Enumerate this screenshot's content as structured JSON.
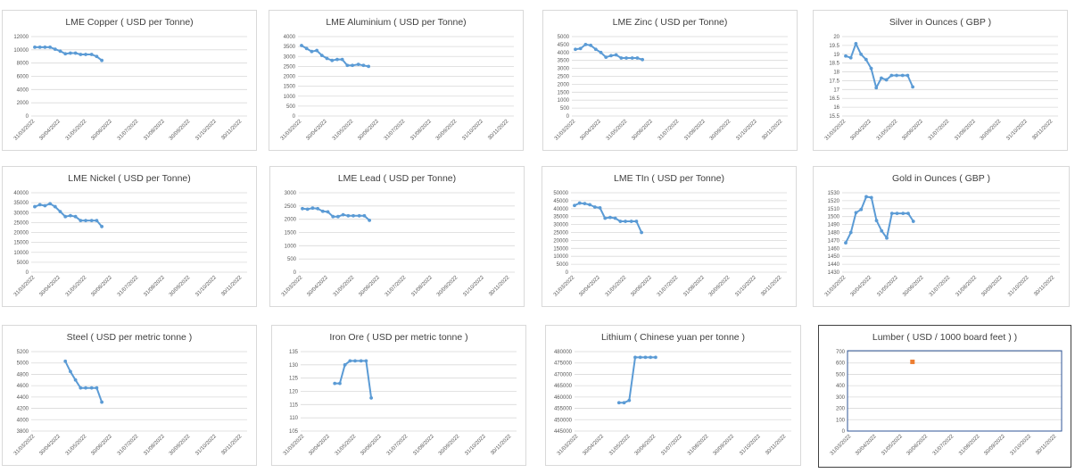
{
  "x_categories": [
    "31/03/2022",
    "30/04/2022",
    "31/05/2022",
    "30/06/2022",
    "31/07/2022",
    "31/08/2022",
    "30/09/2022",
    "31/10/2022",
    "30/11/2022"
  ],
  "colors": {
    "line": "#5b9bd5",
    "marker_orange": "#ed7d31",
    "grid": "#d9d9d9",
    "axis_text": "#595959",
    "title": "#404040"
  },
  "chart_data": [
    {
      "type": "line",
      "title": "LME Copper ( USD per Tonne)",
      "x_categories": [
        "31/03/2022",
        "30/04/2022",
        "31/05/2022",
        "30/06/2022",
        "31/07/2022",
        "31/08/2022",
        "30/09/2022",
        "31/10/2022",
        "30/11/2022"
      ],
      "y_ticks": [
        "12000",
        "10000",
        "8000",
        "6000",
        "4000",
        "2000",
        "0"
      ],
      "ylim": [
        0,
        12000
      ],
      "grid": true,
      "x": [
        "31/03/2022",
        "06/04/2022",
        "12/04/2022",
        "18/04/2022",
        "24/04/2022",
        "30/04/2022",
        "06/05/2022",
        "12/05/2022",
        "18/05/2022",
        "24/05/2022",
        "30/05/2022",
        "06/06/2022",
        "12/06/2022",
        "18/06/2022"
      ],
      "values": [
        10400,
        10400,
        10400,
        10400,
        10100,
        9800,
        9400,
        9500,
        9500,
        9300,
        9300,
        9300,
        9000,
        8400
      ]
    },
    {
      "type": "line",
      "title": "LME Aluminium ( USD per Tonne)",
      "x_categories": [
        "31/03/2022",
        "30/04/2022",
        "31/05/2022",
        "30/06/2022",
        "31/07/2022",
        "31/08/2022",
        "30/09/2022",
        "31/10/2022",
        "30/11/2022"
      ],
      "y_ticks": [
        "4000",
        "3500",
        "3000",
        "2500",
        "2000",
        "1500",
        "1000",
        "500",
        "0"
      ],
      "ylim": [
        0,
        4000
      ],
      "grid": true,
      "x": [
        "31/03/2022",
        "06/04/2022",
        "12/04/2022",
        "18/04/2022",
        "24/04/2022",
        "30/04/2022",
        "06/05/2022",
        "12/05/2022",
        "18/05/2022",
        "24/05/2022",
        "30/05/2022",
        "06/06/2022",
        "12/06/2022",
        "18/06/2022"
      ],
      "values": [
        3550,
        3400,
        3250,
        3300,
        3050,
        2900,
        2800,
        2850,
        2850,
        2550,
        2550,
        2600,
        2550,
        2500
      ]
    },
    {
      "type": "line",
      "title": "LME Zinc ( USD per Tonne)",
      "x_categories": [
        "31/03/2022",
        "30/04/2022",
        "31/05/2022",
        "30/06/2022",
        "31/07/2022",
        "31/08/2022",
        "30/09/2022",
        "31/10/2022",
        "30/11/2022"
      ],
      "y_ticks": [
        "5000",
        "4500",
        "4000",
        "3500",
        "3000",
        "2500",
        "2000",
        "1500",
        "1000",
        "500",
        "0"
      ],
      "ylim": [
        0,
        5000
      ],
      "grid": true,
      "x": [
        "31/03/2022",
        "06/04/2022",
        "12/04/2022",
        "18/04/2022",
        "24/04/2022",
        "30/04/2022",
        "06/05/2022",
        "12/05/2022",
        "18/05/2022",
        "24/05/2022",
        "30/05/2022",
        "06/06/2022",
        "12/06/2022",
        "18/06/2022"
      ],
      "values": [
        4200,
        4250,
        4500,
        4450,
        4200,
        4000,
        3700,
        3800,
        3850,
        3650,
        3650,
        3650,
        3650,
        3550
      ]
    },
    {
      "type": "line",
      "title": "Silver in Ounces ( GBP )",
      "x_categories": [
        "31/03/2022",
        "30/04/2022",
        "31/05/2022",
        "30/06/2022",
        "31/07/2022",
        "31/08/2022",
        "30/09/2022",
        "31/10/2022",
        "30/11/2022"
      ],
      "y_ticks": [
        "20",
        "19.5",
        "19",
        "18.5",
        "18",
        "17.5",
        "17",
        "16.5",
        "16",
        "15.5"
      ],
      "ylim": [
        15.5,
        20
      ],
      "grid": true,
      "x": [
        "31/03/2022",
        "06/04/2022",
        "12/04/2022",
        "18/04/2022",
        "24/04/2022",
        "30/04/2022",
        "06/05/2022",
        "12/05/2022",
        "18/05/2022",
        "24/05/2022",
        "30/05/2022",
        "06/06/2022",
        "12/06/2022",
        "18/06/2022"
      ],
      "values": [
        18.9,
        18.8,
        19.6,
        19.0,
        18.7,
        18.2,
        17.1,
        17.65,
        17.55,
        17.8,
        17.8,
        17.8,
        17.8,
        17.15
      ]
    },
    {
      "type": "line",
      "title": "LME Nickel ( USD per Tonne)",
      "x_categories": [
        "31/03/2022",
        "30/04/2022",
        "31/05/2022",
        "30/06/2022",
        "31/07/2022",
        "31/08/2022",
        "30/09/2022",
        "31/10/2022",
        "30/11/2022"
      ],
      "y_ticks": [
        "40000",
        "35000",
        "30000",
        "25000",
        "20000",
        "15000",
        "10000",
        "5000",
        "0"
      ],
      "ylim": [
        0,
        40000
      ],
      "grid": true,
      "x": [
        "31/03/2022",
        "06/04/2022",
        "12/04/2022",
        "18/04/2022",
        "24/04/2022",
        "30/04/2022",
        "06/05/2022",
        "12/05/2022",
        "18/05/2022",
        "24/05/2022",
        "30/05/2022",
        "06/06/2022",
        "12/06/2022",
        "18/06/2022"
      ],
      "values": [
        33000,
        34000,
        33500,
        34500,
        33000,
        30500,
        28000,
        28500,
        28000,
        26000,
        26000,
        26000,
        26000,
        23000
      ]
    },
    {
      "type": "line",
      "title": "LME Lead ( USD per Tonne)",
      "x_categories": [
        "31/03/2022",
        "30/04/2022",
        "31/05/2022",
        "30/06/2022",
        "31/07/2022",
        "31/08/2022",
        "30/09/2022",
        "31/10/2022",
        "30/11/2022"
      ],
      "y_ticks": [
        "3000",
        "2500",
        "2000",
        "1500",
        "1000",
        "500",
        "0"
      ],
      "ylim": [
        0,
        3000
      ],
      "grid": true,
      "x": [
        "31/03/2022",
        "06/04/2022",
        "12/04/2022",
        "18/04/2022",
        "24/04/2022",
        "30/04/2022",
        "06/05/2022",
        "12/05/2022",
        "18/05/2022",
        "24/05/2022",
        "30/05/2022",
        "06/06/2022",
        "12/06/2022",
        "18/06/2022"
      ],
      "values": [
        2400,
        2380,
        2420,
        2400,
        2300,
        2280,
        2100,
        2100,
        2170,
        2130,
        2130,
        2130,
        2130,
        1960
      ]
    },
    {
      "type": "line",
      "title": "LME TIn ( USD per Tonne)",
      "x_categories": [
        "31/03/2022",
        "30/04/2022",
        "31/05/2022",
        "30/06/2022",
        "31/07/2022",
        "31/08/2022",
        "30/09/2022",
        "31/10/2022",
        "30/11/2022"
      ],
      "y_ticks": [
        "50000",
        "45000",
        "40000",
        "35000",
        "30000",
        "25000",
        "20000",
        "15000",
        "10000",
        "5000",
        "0"
      ],
      "ylim": [
        0,
        50000
      ],
      "grid": true,
      "x": [
        "31/03/2022",
        "06/04/2022",
        "12/04/2022",
        "18/04/2022",
        "24/04/2022",
        "30/04/2022",
        "06/05/2022",
        "12/05/2022",
        "18/05/2022",
        "24/05/2022",
        "30/05/2022",
        "06/06/2022",
        "12/06/2022",
        "18/06/2022"
      ],
      "values": [
        42000,
        43500,
        43200,
        42500,
        41000,
        40500,
        34000,
        34500,
        34000,
        32000,
        32000,
        32000,
        32000,
        25000
      ]
    },
    {
      "type": "line",
      "title": "Gold in Ounces ( GBP )",
      "x_categories": [
        "31/03/2022",
        "30/04/2022",
        "31/05/2022",
        "30/06/2022",
        "31/07/2022",
        "31/08/2022",
        "30/09/2022",
        "31/10/2022",
        "30/11/2022"
      ],
      "y_ticks": [
        "1530",
        "1520",
        "1510",
        "1500",
        "1490",
        "1480",
        "1470",
        "1460",
        "1450",
        "1440",
        "1430"
      ],
      "ylim": [
        1430,
        1530
      ],
      "grid": true,
      "x": [
        "31/03/2022",
        "06/04/2022",
        "12/04/2022",
        "18/04/2022",
        "24/04/2022",
        "30/04/2022",
        "06/05/2022",
        "12/05/2022",
        "18/05/2022",
        "24/05/2022",
        "30/05/2022",
        "06/06/2022",
        "12/06/2022",
        "18/06/2022"
      ],
      "values": [
        1467,
        1480,
        1505,
        1509,
        1525,
        1524,
        1495,
        1482,
        1473,
        1504,
        1504,
        1504,
        1504,
        1494
      ]
    },
    {
      "type": "line",
      "title": "Steel ( USD per metric tonne )",
      "x_categories": [
        "31/03/2022",
        "30/04/2022",
        "31/05/2022",
        "30/06/2022",
        "31/07/2022",
        "31/08/2022",
        "30/09/2022",
        "31/10/2022",
        "30/11/2022"
      ],
      "y_ticks": [
        "5200",
        "5000",
        "4800",
        "4600",
        "4400",
        "4200",
        "4000",
        "3800"
      ],
      "ylim": [
        3800,
        5200
      ],
      "grid": true,
      "x": [
        "06/05/2022",
        "12/05/2022",
        "18/05/2022",
        "24/05/2022",
        "30/05/2022",
        "06/06/2022",
        "12/06/2022",
        "18/06/2022"
      ],
      "values": [
        5030,
        4850,
        4700,
        4560,
        4560,
        4560,
        4560,
        4310
      ]
    },
    {
      "type": "line",
      "title": "Iron Ore ( USD per metric tonne )",
      "x_categories": [
        "31/03/2022",
        "30/04/2022",
        "31/05/2022",
        "30/06/2022",
        "31/07/2022",
        "31/08/2022",
        "30/09/2022",
        "31/10/2022",
        "30/11/2022"
      ],
      "y_ticks": [
        "135",
        "130",
        "125",
        "120",
        "115",
        "110",
        "105"
      ],
      "ylim": [
        105,
        135
      ],
      "grid": true,
      "x": [
        "06/05/2022",
        "12/05/2022",
        "18/05/2022",
        "24/05/2022",
        "30/05/2022",
        "06/06/2022",
        "12/06/2022",
        "18/06/2022"
      ],
      "values": [
        123,
        123,
        130,
        131.5,
        131.5,
        131.5,
        131.5,
        117.5
      ]
    },
    {
      "type": "line",
      "title": "Lithium ( Chinese yuan per tonne )",
      "x_categories": [
        "31/03/2022",
        "30/04/2022",
        "31/05/2022",
        "30/06/2022",
        "31/07/2022",
        "31/08/2022",
        "30/09/2022",
        "31/10/2022",
        "30/11/2022"
      ],
      "y_ticks": [
        "480000",
        "475000",
        "470000",
        "465000",
        "460000",
        "455000",
        "450000",
        "445000"
      ],
      "ylim": [
        445000,
        480000
      ],
      "grid": true,
      "x": [
        "18/05/2022",
        "24/05/2022",
        "30/05/2022",
        "06/06/2022",
        "12/06/2022",
        "18/06/2022",
        "24/06/2022",
        "30/06/2022"
      ],
      "values": [
        457500,
        457500,
        458500,
        477500,
        477500,
        477500,
        477500,
        477500
      ]
    },
    {
      "type": "scatter",
      "title": "Lumber ( USD / 1000 board feet ) )",
      "x_categories": [
        "31/03/2022",
        "30/04/2022",
        "31/05/2022",
        "30/06/2022",
        "31/07/2022",
        "31/08/2022",
        "30/09/2022",
        "31/10/2022",
        "30/11/2022"
      ],
      "y_ticks": [
        "700",
        "600",
        "500",
        "400",
        "300",
        "200",
        "100",
        "0"
      ],
      "ylim": [
        0,
        700
      ],
      "grid": true,
      "x": [
        "12/06/2022"
      ],
      "values": [
        610
      ]
    }
  ]
}
